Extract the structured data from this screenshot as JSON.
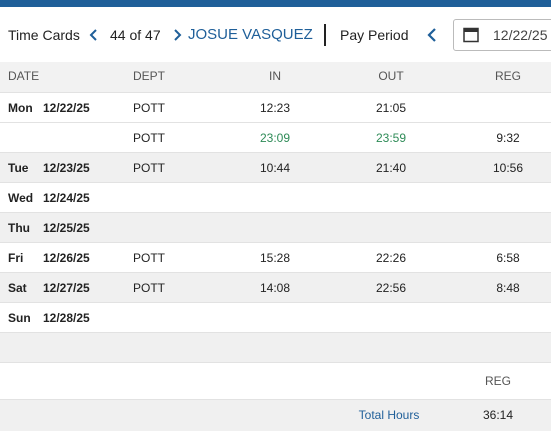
{
  "header": {
    "title": "Time Cards",
    "position": "44 of 47",
    "employee": "JOSUE VASQUEZ",
    "period_label": "Pay Period",
    "period_start": "12/22/25"
  },
  "table": {
    "columns": [
      "DATE",
      "DEPT",
      "IN",
      "OUT",
      "REG"
    ],
    "rows": [
      {
        "day": "Mon",
        "date": "12/22/25",
        "dept": "POTT",
        "in": "12:23",
        "out": "21:05"
      },
      {
        "dept": "POTT",
        "in": "23:09",
        "out": "23:59",
        "reg": "9:32",
        "color": "#2e8b57"
      },
      {
        "day": "Tue",
        "date": "12/23/25",
        "dept": "POTT",
        "in": "10:44",
        "out": "21:40",
        "reg": "10:56"
      },
      {
        "day": "Wed",
        "date": "12/24/25"
      },
      {
        "day": "Thu",
        "date": "12/25/25"
      },
      {
        "day": "Fri",
        "date": "12/26/25",
        "dept": "POTT",
        "in": "15:28",
        "out": "22:26",
        "reg": "6:58"
      },
      {
        "day": "Sat",
        "date": "12/27/25",
        "dept": "POTT",
        "in": "14:08",
        "out": "22:56",
        "reg": "8:48"
      },
      {
        "day": "Sun",
        "date": "12/28/25"
      }
    ]
  },
  "totals": {
    "column": "REG",
    "label": "Total Hours",
    "reg": "36:14"
  }
}
